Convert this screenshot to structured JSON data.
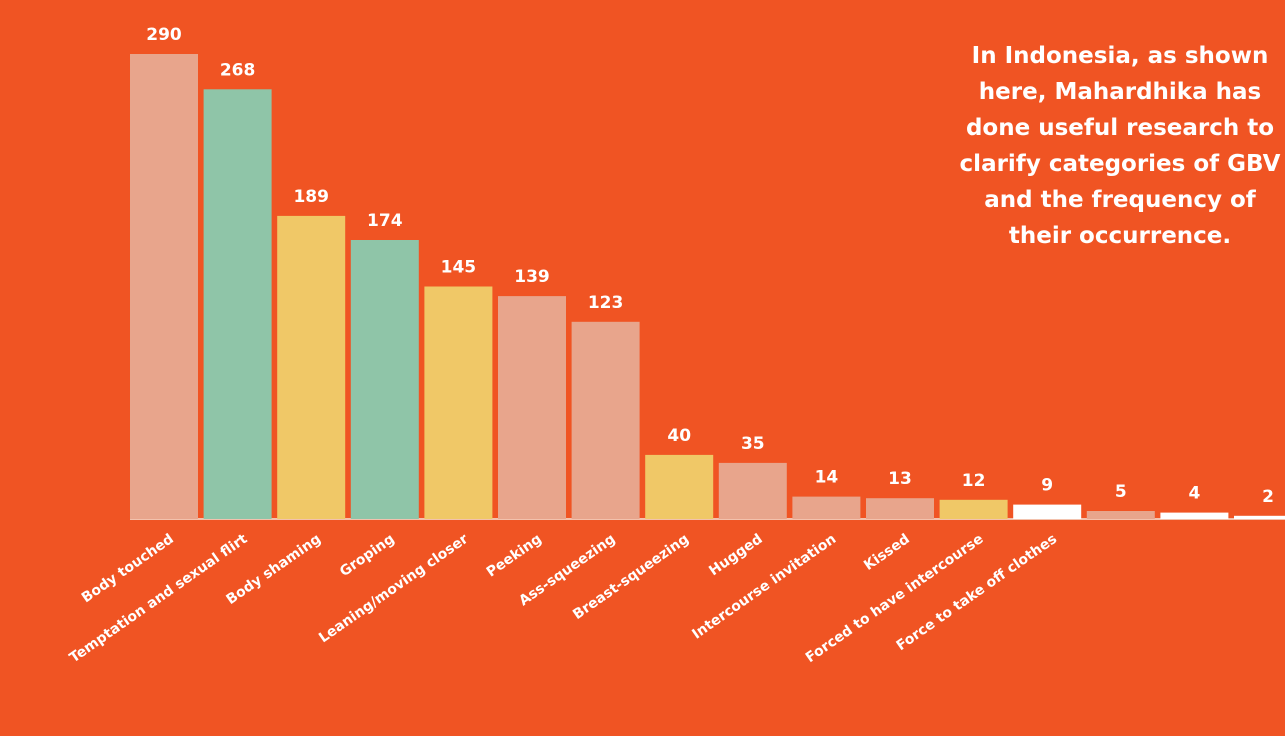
{
  "caption": {
    "lines": [
      "In Indonesia, as shown",
      "here, Mahardhika has",
      "done useful research to",
      "clarify categories of GBV",
      "and the frequency of",
      "their occurrence."
    ]
  },
  "colors": {
    "background": "#f05423",
    "pink": "#e8a58c",
    "green": "#8fc5a8",
    "yellow": "#f0c867",
    "white": "#ffffff",
    "baseline": "#f3c2ad"
  },
  "chart_data": {
    "type": "bar",
    "title": "",
    "xlabel": "",
    "ylabel": "",
    "ylim": [
      0,
      290
    ],
    "grid": false,
    "categories": [
      "Body touched",
      "Temptation and sexual flirt",
      "Body shaming",
      "Groping",
      "Leaning/moving closer",
      "Peeking",
      "Ass-squeezing",
      "Breast-squeezing",
      "Hugged",
      "Intercourse invitation",
      "Kissed",
      "Forced to have intercourse",
      "Force to take off clothes",
      "",
      "",
      ""
    ],
    "values": [
      290,
      268,
      189,
      174,
      145,
      139,
      123,
      40,
      35,
      14,
      13,
      12,
      9,
      5,
      4,
      2
    ],
    "value_labels": [
      "290",
      "268",
      "189",
      "174",
      "145",
      "139",
      "123",
      "40",
      "35",
      "14",
      "13",
      "12",
      "9",
      "5",
      "4",
      "2"
    ],
    "bar_colors": [
      "pink",
      "green",
      "yellow",
      "green",
      "yellow",
      "pink",
      "pink",
      "yellow",
      "pink",
      "pink",
      "pink",
      "yellow",
      "white",
      "pink",
      "white",
      "white"
    ]
  }
}
